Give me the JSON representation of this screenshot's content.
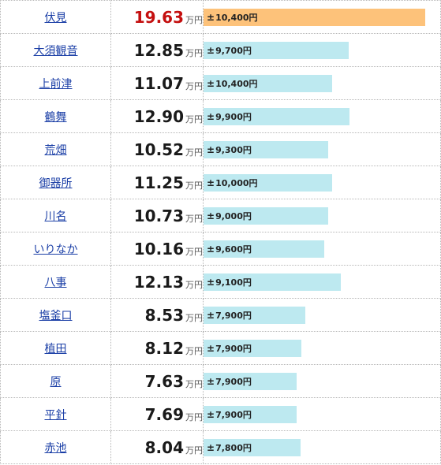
{
  "unit": "万円",
  "rows": [
    {
      "station": "伏見",
      "price": "19.63",
      "diff": "10,400円",
      "bar": 1.0,
      "top": true
    },
    {
      "station": "大須観音",
      "price": "12.85",
      "diff": "9,700円",
      "bar": 0.655
    },
    {
      "station": "上前津",
      "price": "11.07",
      "diff": "10,400円",
      "bar": 0.581
    },
    {
      "station": "鶴舞",
      "price": "12.90",
      "diff": "9,900円",
      "bar": 0.66
    },
    {
      "station": "荒畑",
      "price": "10.52",
      "diff": "9,300円",
      "bar": 0.562
    },
    {
      "station": "御器所",
      "price": "11.25",
      "diff": "10,000円",
      "bar": 0.581
    },
    {
      "station": "川名",
      "price": "10.73",
      "diff": "9,000円",
      "bar": 0.562
    },
    {
      "station": "いりなか",
      "price": "10.16",
      "diff": "9,600円",
      "bar": 0.543
    },
    {
      "station": "八事",
      "price": "12.13",
      "diff": "9,100円",
      "bar": 0.618
    },
    {
      "station": "塩釜口",
      "price": "8.53",
      "diff": "7,900円",
      "bar": 0.46
    },
    {
      "station": "植田",
      "price": "8.12",
      "diff": "7,900円",
      "bar": 0.441
    },
    {
      "station": "原",
      "price": "7.63",
      "diff": "7,900円",
      "bar": 0.419
    },
    {
      "station": "平針",
      "price": "7.69",
      "diff": "7,900円",
      "bar": 0.419
    },
    {
      "station": "赤池",
      "price": "8.04",
      "diff": "7,800円",
      "bar": 0.437
    }
  ],
  "colors": {
    "top_bar": "#fdc27a",
    "bar": "#bde9f0",
    "top_price": "#c40f0f",
    "link": "#1a3ea6"
  }
}
